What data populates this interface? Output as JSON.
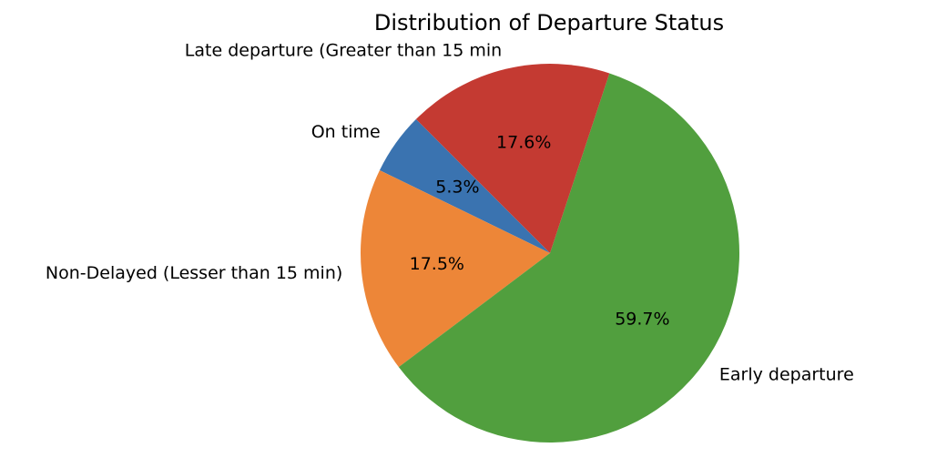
{
  "chart_data": {
    "type": "pie",
    "title": "Distribution of Departure Status",
    "start_angle_deg": 135,
    "direction": "counterclockwise",
    "slices": [
      {
        "label": "On time",
        "value": 5.3,
        "pct_label": "5.3%",
        "color": "#3a73b0"
      },
      {
        "label": "Non-Delayed (Lesser than 15 min)",
        "value": 17.5,
        "pct_label": "17.5%",
        "color": "#ed8638"
      },
      {
        "label": "Early departure",
        "value": 59.7,
        "pct_label": "59.7%",
        "color": "#519f3e"
      },
      {
        "label": "Late departure (Greater than 15 min",
        "value": 17.6,
        "pct_label": "17.6%",
        "color": "#c43a32"
      }
    ]
  }
}
